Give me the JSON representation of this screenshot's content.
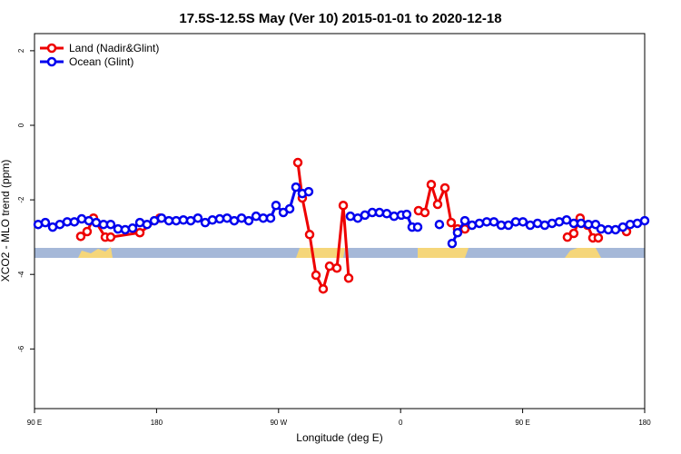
{
  "chart_data": {
    "type": "line",
    "title": "17.5S-12.5S May (Ver 10)   2015-01-01 to 2020-12-18",
    "xlabel": "Longitude (deg E)",
    "ylabel": "XCO2 - MLO trend (ppm)",
    "xlim": [
      90,
      540
    ],
    "ylim": [
      -7.6,
      2.46
    ],
    "xticks": [
      {
        "value": 90,
        "label": "90 E"
      },
      180,
      {
        "value": 270,
        "label": "90 W"
      },
      {
        "value": 360,
        "label": "0"
      },
      {
        "value": 450,
        "label": "90 E"
      },
      {
        "value": 540,
        "label": "180"
      }
    ],
    "yticks": [
      -6,
      -4,
      -2,
      0,
      2
    ],
    "legend": "top-left",
    "series": [
      {
        "name": "Land (Nadir&Glint)",
        "color": "#ee0000",
        "x": [
          124.1,
          128.8,
          133.5,
          142.2,
          146.2,
          167.7,
          182.4,
          230,
          284.2,
          287.5,
          292.9,
          297.6,
          302.9,
          307.6,
          313.0,
          317.7,
          321.7,
          350,
          373.2,
          377.9,
          382.6,
          387.3,
          392.7,
          397.3,
          402.0,
          407.4,
          450,
          483.0,
          487.7,
          492.4,
          497.8,
          501.8,
          505.8,
          515,
          526.6
        ],
        "values": [
          -2.98,
          -2.85,
          -2.49,
          -3.0,
          -3.0,
          -2.88,
          -2.49,
          null,
          -1.0,
          -1.95,
          -2.93,
          -4.02,
          -4.39,
          -3.78,
          -3.83,
          -2.15,
          -4.1,
          null,
          -2.29,
          -2.34,
          -1.59,
          -2.12,
          -1.68,
          -2.61,
          -2.78,
          -2.78,
          null,
          -3.0,
          -2.9,
          -2.49,
          -2.68,
          -3.02,
          -3.02,
          null,
          -2.85
        ]
      },
      {
        "name": "Ocean (Glint)",
        "color": "#0000ee",
        "x": [
          92.7,
          98.0,
          103.4,
          108.7,
          114.1,
          119.4,
          124.8,
          130.1,
          135.5,
          140.9,
          146.2,
          151.6,
          156.9,
          162.3,
          167.7,
          173.0,
          178.4,
          183.7,
          189.1,
          194.5,
          199.8,
          205.2,
          210.5,
          215.9,
          221.2,
          226.6,
          232.0,
          237.3,
          242.7,
          248.0,
          253.4,
          258.7,
          264.1,
          268.1,
          273.5,
          278.2,
          282.8,
          287.5,
          292.2,
          307,
          323.0,
          328.4,
          333.7,
          339.1,
          344.4,
          349.8,
          355.2,
          360.5,
          364.5,
          368.5,
          372.6,
          380,
          388.6,
          393,
          398.0,
          402.0,
          407.4,
          412.7,
          418.1,
          423.5,
          428.8,
          434.2,
          439.5,
          444.9,
          450.2,
          455.6,
          461.0,
          466.3,
          471.7,
          477.0,
          482.4,
          487.7,
          493.1,
          498.5,
          503.8,
          507.8,
          513.2,
          518.5,
          523.9,
          529.3,
          534.6,
          540.0
        ],
        "values": [
          -2.66,
          -2.61,
          -2.73,
          -2.66,
          -2.59,
          -2.59,
          -2.51,
          -2.56,
          -2.61,
          -2.66,
          -2.66,
          -2.78,
          -2.8,
          -2.76,
          -2.61,
          -2.66,
          -2.56,
          -2.49,
          -2.56,
          -2.56,
          -2.54,
          -2.56,
          -2.49,
          -2.61,
          -2.54,
          -2.51,
          -2.49,
          -2.56,
          -2.49,
          -2.56,
          -2.44,
          -2.49,
          -2.49,
          -2.15,
          -2.34,
          -2.24,
          -1.66,
          -1.83,
          -1.78,
          null,
          -2.44,
          -2.49,
          -2.41,
          -2.34,
          -2.34,
          -2.37,
          -2.44,
          -2.41,
          -2.39,
          -2.73,
          -2.73,
          null,
          -2.66,
          null,
          -3.17,
          -2.88,
          -2.56,
          -2.68,
          -2.63,
          -2.59,
          -2.59,
          -2.68,
          -2.68,
          -2.59,
          -2.59,
          -2.68,
          -2.63,
          -2.68,
          -2.63,
          -2.59,
          -2.54,
          -2.63,
          -2.63,
          -2.66,
          -2.66,
          -2.78,
          -2.8,
          -2.8,
          -2.73,
          -2.66,
          -2.63,
          -2.56
        ]
      }
    ]
  }
}
